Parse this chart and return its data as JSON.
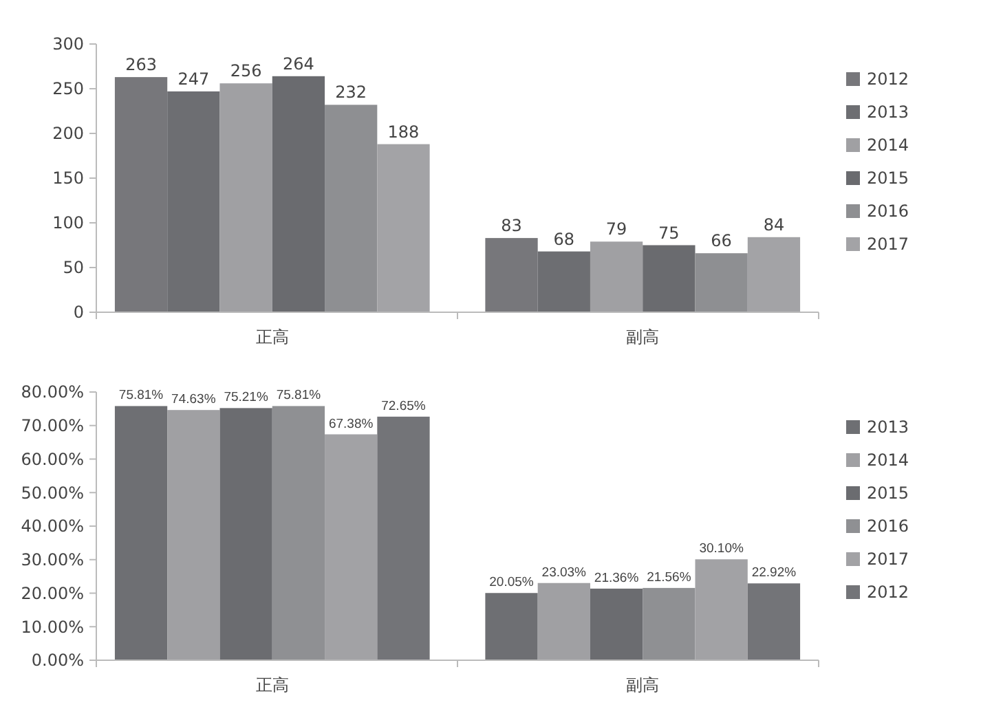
{
  "chart_data": [
    {
      "type": "bar",
      "categories": [
        "正高",
        "副高"
      ],
      "series": [
        {
          "name": "2012",
          "color": "#77777b",
          "values": [
            263,
            83
          ]
        },
        {
          "name": "2013",
          "color": "#6d6e72",
          "values": [
            247,
            68
          ]
        },
        {
          "name": "2014",
          "color": "#a0a0a3",
          "values": [
            256,
            79
          ]
        },
        {
          "name": "2015",
          "color": "#6a6b6f",
          "values": [
            264,
            75
          ]
        },
        {
          "name": "2016",
          "color": "#8e8f92",
          "values": [
            232,
            66
          ]
        },
        {
          "name": "2017",
          "color": "#a3a3a6",
          "values": [
            188,
            84
          ]
        }
      ],
      "ylim": [
        0,
        300
      ],
      "yticks": [
        0,
        50,
        100,
        150,
        200,
        250,
        300
      ],
      "data_labels": true,
      "legend": "right",
      "grid": false
    },
    {
      "type": "bar",
      "categories": [
        "正高",
        "副高"
      ],
      "series": [
        {
          "name": "2013",
          "color": "#6e6f73",
          "values": [
            75.81,
            20.05
          ],
          "value_labels": [
            "75.81%",
            "20.05%"
          ]
        },
        {
          "name": "2014",
          "color": "#a0a0a3",
          "values": [
            74.63,
            23.03
          ],
          "value_labels": [
            "74.63%",
            "23.03%"
          ]
        },
        {
          "name": "2015",
          "color": "#6b6c70",
          "values": [
            75.21,
            21.36
          ],
          "value_labels": [
            "75.21%",
            "21.36%"
          ]
        },
        {
          "name": "2016",
          "color": "#8f9093",
          "values": [
            75.81,
            21.56
          ],
          "value_labels": [
            "75.81%",
            "21.56%"
          ]
        },
        {
          "name": "2017",
          "color": "#a2a2a5",
          "values": [
            67.38,
            30.1
          ],
          "value_labels": [
            "67.38%",
            "30.10%"
          ]
        },
        {
          "name": "2012",
          "color": "#737478",
          "values": [
            72.65,
            22.92
          ],
          "value_labels": [
            "72.65%",
            "22.92%"
          ]
        }
      ],
      "ylim": [
        0,
        80
      ],
      "yticks": [
        {
          "value": 0,
          "label": "0.00%"
        },
        {
          "value": 10,
          "label": "10.00%"
        },
        {
          "value": 20,
          "label": "20.00%"
        },
        {
          "value": 30,
          "label": "30.00%"
        },
        {
          "value": 40,
          "label": "40.00%"
        },
        {
          "value": 50,
          "label": "50.00%"
        },
        {
          "value": 60,
          "label": "60.00%"
        },
        {
          "value": 70,
          "label": "70.00%"
        },
        {
          "value": 80,
          "label": "80.00%"
        }
      ],
      "legend": "right",
      "grid": false
    }
  ]
}
